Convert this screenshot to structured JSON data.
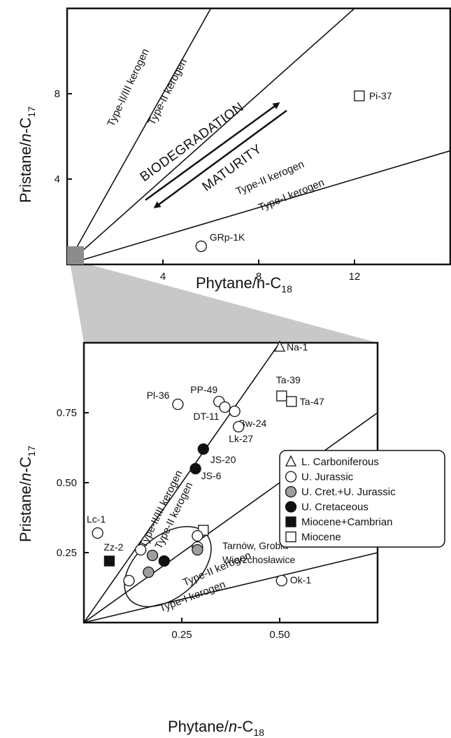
{
  "chart_data": [
    {
      "type": "scatter",
      "xlabel": "Phytane/n-C",
      "xlabel_sub": "18",
      "ylabel_pre": "Pristane/",
      "ylabel_n": "n",
      "ylabel_post": "-C",
      "ylabel_sub": "17",
      "xlim": [
        0,
        16
      ],
      "ylim": [
        0,
        12
      ],
      "xticks": [
        4,
        8,
        12
      ],
      "xtick_labels": [
        "4",
        "8",
        "12"
      ],
      "yticks": [
        4,
        8
      ],
      "ytick_labels": [
        "4",
        "8"
      ],
      "lines": [
        {
          "name": "Type-II/III kerogen",
          "slope": 2.0
        },
        {
          "name": "Type-II kerogen",
          "slope": 1.0
        },
        {
          "name": "Type-I kerogen",
          "slope": 0.333
        }
      ],
      "line_labels": {
        "type_23": "Type-II/III kerogen",
        "type_2_steep": "Type-II kerogen",
        "type_2_low": "Type-II kerogen",
        "type_1": "Type-I kerogen"
      },
      "arrows": {
        "up": "BIODEGRADATION",
        "down": "MATURITY"
      },
      "points": [
        {
          "label": "Pi-37",
          "x": 12.2,
          "y": 7.9,
          "group": "miocene"
        },
        {
          "label": "GRp-1K",
          "x": 5.6,
          "y": 0.85,
          "group": "u_jurassic"
        }
      ]
    },
    {
      "type": "scatter",
      "xlabel_pre": "Phytane/",
      "xlabel_n": "n",
      "xlabel_post": "-C",
      "xlabel_sub": "18",
      "ylabel_pre": "Pristane/",
      "ylabel_n": "n",
      "ylabel_post": "-C",
      "ylabel_sub": "17",
      "xlim": [
        0,
        0.75
      ],
      "ylim": [
        0,
        1.0
      ],
      "xticks": [
        0.25,
        0.5
      ],
      "xtick_labels": [
        "0.25",
        "0.50"
      ],
      "yticks": [
        0.25,
        0.5,
        0.75
      ],
      "ytick_labels": [
        "0.25",
        "0.50",
        "0.75"
      ],
      "lines": [
        {
          "name": "Type-II/III kerogen",
          "slope": 2.0
        },
        {
          "name": "Type-II kerogen",
          "slope": 1.0
        },
        {
          "name": "Type-I kerogen",
          "slope": 0.333
        }
      ],
      "line_labels": {
        "type_23": "Type-II/III kerogen",
        "type_2_steep": "Type-II kerogen",
        "type_2_low": "Type-II kerogen",
        "type_1": "Type-I kerogen"
      },
      "legend": [
        {
          "group": "l_carboniferous",
          "label": "L. Carboniferous"
        },
        {
          "group": "u_jurassic",
          "label": "U. Jurassic"
        },
        {
          "group": "u_cret_u_jurassic",
          "label": "U. Cret.+U. Jurassic"
        },
        {
          "group": "u_cretaceous",
          "label": "U. Cretaceous"
        },
        {
          "group": "miocene_cambrian",
          "label": "Miocene+Cambrian"
        },
        {
          "group": "miocene",
          "label": "Miocene"
        }
      ],
      "legend_position": "right",
      "annotation": {
        "line1": "Tarnów, Grobla",
        "line2": "Wierzchosławice"
      },
      "points": [
        {
          "label": "Na-1",
          "x": 0.5,
          "y": 0.985,
          "group": "l_carboniferous"
        },
        {
          "label": "Ta-39",
          "x": 0.505,
          "y": 0.81,
          "group": "miocene"
        },
        {
          "label": "Ta-47",
          "x": 0.53,
          "y": 0.79,
          "group": "miocene"
        },
        {
          "label": "Pl-36",
          "x": 0.24,
          "y": 0.78,
          "group": "u_jurassic"
        },
        {
          "label": "PP-49",
          "x": 0.345,
          "y": 0.79,
          "group": "u_jurassic"
        },
        {
          "label": "DT-11",
          "x": 0.36,
          "y": 0.77,
          "group": "u_jurassic"
        },
        {
          "label": "Bw-24",
          "x": 0.385,
          "y": 0.755,
          "group": "u_jurassic"
        },
        {
          "label": "Lk-27",
          "x": 0.395,
          "y": 0.7,
          "group": "u_jurassic"
        },
        {
          "label": "JS-20",
          "x": 0.305,
          "y": 0.62,
          "group": "u_cretaceous"
        },
        {
          "label": "JS-6",
          "x": 0.285,
          "y": 0.55,
          "group": "u_cretaceous"
        },
        {
          "label": "Lc-1",
          "x": 0.035,
          "y": 0.32,
          "group": "u_jurassic"
        },
        {
          "label": "Zz-2",
          "x": 0.065,
          "y": 0.22,
          "group": "miocene_cambrian"
        },
        {
          "label": "Ok-1",
          "x": 0.505,
          "y": 0.15,
          "group": "u_jurassic"
        },
        {
          "label": "",
          "x": 0.305,
          "y": 0.33,
          "group": "miocene"
        },
        {
          "label": "",
          "x": 0.145,
          "y": 0.26,
          "group": "u_jurassic"
        },
        {
          "label": "",
          "x": 0.115,
          "y": 0.15,
          "group": "u_jurassic"
        },
        {
          "label": "",
          "x": 0.29,
          "y": 0.31,
          "group": "u_jurassic"
        },
        {
          "label": "",
          "x": 0.29,
          "y": 0.27,
          "group": "u_jurassic"
        },
        {
          "label": "",
          "x": 0.29,
          "y": 0.26,
          "group": "u_cret_u_jurassic"
        },
        {
          "label": "",
          "x": 0.175,
          "y": 0.24,
          "group": "u_cret_u_jurassic"
        },
        {
          "label": "",
          "x": 0.165,
          "y": 0.18,
          "group": "u_cret_u_jurassic"
        },
        {
          "label": "",
          "x": 0.205,
          "y": 0.22,
          "group": "u_cretaceous"
        }
      ]
    }
  ],
  "colors": {
    "axis": "#111111",
    "grey_fill": "#9e9e9e",
    "zoom_box": "#8c8c8c",
    "zoom_wedge": "#c8c8c8",
    "marker_edge": "#111111"
  }
}
